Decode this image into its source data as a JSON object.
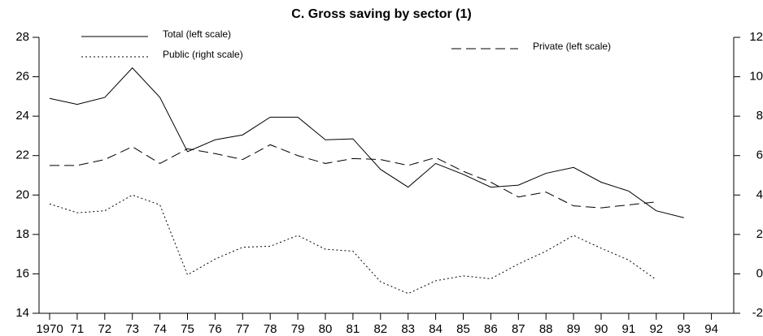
{
  "chart_data": {
    "type": "line",
    "title": "C. Gross saving by sector (1)",
    "categories": [
      "1970",
      "71",
      "72",
      "73",
      "74",
      "75",
      "76",
      "77",
      "78",
      "79",
      "80",
      "81",
      "82",
      "83",
      "84",
      "85",
      "86",
      "87",
      "88",
      "89",
      "90",
      "91",
      "92",
      "93",
      "94"
    ],
    "ylim": [
      14,
      28
    ],
    "yticks": [
      14,
      16,
      18,
      20,
      22,
      24,
      26,
      28
    ],
    "y2lim": [
      -2,
      12
    ],
    "y2ticks": [
      -2,
      0,
      2,
      4,
      6,
      8,
      10,
      12
    ],
    "series": [
      {
        "name": "Total (left scale)",
        "color": "#000000",
        "dash": "none",
        "values": [
          24.9,
          24.6,
          24.95,
          26.45,
          24.95,
          22.2,
          22.8,
          23.05,
          23.95,
          23.95,
          22.8,
          22.85,
          21.3,
          20.4,
          21.6,
          21.05,
          20.4,
          20.5,
          21.1,
          21.4,
          20.65,
          20.2,
          19.2,
          18.85,
          null
        ]
      },
      {
        "name": "Public (right scale)",
        "color": "#000000",
        "dash": "2,3",
        "axis": "y2",
        "values": [
          3.55,
          3.1,
          3.2,
          4.0,
          3.5,
          -0.05,
          0.75,
          1.35,
          1.4,
          1.95,
          1.25,
          1.15,
          -0.4,
          -1.0,
          -0.35,
          -0.1,
          -0.25,
          0.5,
          1.15,
          1.95,
          1.3,
          0.7,
          -0.3,
          null,
          null
        ]
      },
      {
        "name": "Private (left scale)",
        "color": "#000000",
        "dash": "12,6",
        "values": [
          21.5,
          21.5,
          21.8,
          22.45,
          21.6,
          22.35,
          22.1,
          21.8,
          22.55,
          22.0,
          21.6,
          21.85,
          21.8,
          21.5,
          21.9,
          21.2,
          20.65,
          19.9,
          20.15,
          19.45,
          19.35,
          19.5,
          19.65,
          null,
          null
        ]
      }
    ]
  }
}
